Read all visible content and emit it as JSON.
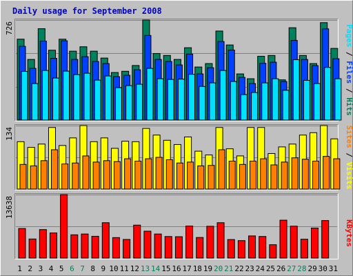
{
  "chart_data": [
    {
      "type": "bar",
      "panel": "hits-files-pages",
      "title": "Daily usage for September 2008",
      "categories": [
        "1",
        "2",
        "3",
        "4",
        "5",
        "6",
        "7",
        "8",
        "9",
        "10",
        "11",
        "12",
        "13",
        "14",
        "15",
        "16",
        "17",
        "18",
        "19",
        "20",
        "21",
        "22",
        "23",
        "24",
        "25",
        "26",
        "27",
        "28",
        "29",
        "30",
        "31"
      ],
      "weekend_days": [
        "6",
        "7",
        "13",
        "14",
        "20",
        "21",
        "27",
        "28"
      ],
      "ytick": "726",
      "ylim": [
        0,
        726
      ],
      "legend": [
        "Pages",
        "Files",
        "Hits"
      ],
      "series": [
        {
          "name": "Hits",
          "values": [
            587,
            440,
            663,
            507,
            587,
            500,
            532,
            500,
            450,
            345,
            354,
            396,
            726,
            483,
            469,
            440,
            525,
            385,
            410,
            646,
            545,
            335,
            300,
            463,
            469,
            292,
            670,
            469,
            410,
            707,
            520
          ]
        },
        {
          "name": "Files",
          "values": [
            535,
            375,
            573,
            448,
            575,
            440,
            460,
            425,
            410,
            315,
            325,
            365,
            614,
            440,
            425,
            400,
            479,
            335,
            380,
            570,
            508,
            310,
            265,
            412,
            420,
            280,
            578,
            440,
            395,
            662,
            445
          ]
        },
        {
          "name": "Pages",
          "values": [
            353,
            265,
            360,
            305,
            355,
            330,
            340,
            290,
            320,
            235,
            250,
            260,
            375,
            300,
            295,
            297,
            332,
            244,
            270,
            360,
            280,
            185,
            200,
            270,
            300,
            216,
            438,
            288,
            265,
            382,
            300
          ]
        }
      ],
      "grid": true
    },
    {
      "type": "bar",
      "panel": "visits-sites",
      "categories": [
        "1",
        "2",
        "3",
        "4",
        "5",
        "6",
        "7",
        "8",
        "9",
        "10",
        "11",
        "12",
        "13",
        "14",
        "15",
        "16",
        "17",
        "18",
        "19",
        "20",
        "21",
        "22",
        "23",
        "24",
        "25",
        "26",
        "27",
        "28",
        "29",
        "30",
        "31"
      ],
      "ytick": "134",
      "ylim": [
        0,
        134
      ],
      "legend": [
        "Sites",
        "Visits"
      ],
      "series": [
        {
          "name": "Visits",
          "values": [
            100,
            88,
            95,
            130,
            92,
            108,
            134,
            100,
            108,
            86,
            101,
            100,
            128,
            114,
            103,
            94,
            110,
            80,
            72,
            130,
            85,
            70,
            130,
            130,
            75,
            89,
            95,
            114,
            119,
            134,
            106
          ]
        },
        {
          "name": "Sites",
          "values": [
            52,
            49,
            60,
            83,
            53,
            55,
            70,
            57,
            60,
            58,
            64,
            59,
            64,
            67,
            62,
            55,
            57,
            49,
            50,
            83,
            59,
            52,
            59,
            64,
            51,
            57,
            66,
            63,
            59,
            69,
            64
          ]
        }
      ],
      "grid": true
    },
    {
      "type": "bar",
      "panel": "kbytes",
      "categories": [
        "1",
        "2",
        "3",
        "4",
        "5",
        "6",
        "7",
        "8",
        "9",
        "10",
        "11",
        "12",
        "13",
        "14",
        "15",
        "16",
        "17",
        "18",
        "19",
        "20",
        "21",
        "22",
        "23",
        "24",
        "25",
        "26",
        "27",
        "28",
        "29",
        "30",
        "31"
      ],
      "ytick": "13638",
      "ylim": [
        0,
        13638
      ],
      "legend": [
        "KBytes"
      ],
      "series": [
        {
          "name": "KBytes",
          "values": [
            6350,
            4100,
            6120,
            5400,
            13638,
            5000,
            5170,
            4680,
            7600,
            4400,
            4000,
            7080,
            5780,
            5170,
            4630,
            4590,
            6880,
            4420,
            6830,
            7600,
            3980,
            3750,
            4760,
            4640,
            2870,
            8140,
            6850,
            4050,
            6450,
            8060,
            0
          ]
        }
      ],
      "grid": true
    }
  ]
}
